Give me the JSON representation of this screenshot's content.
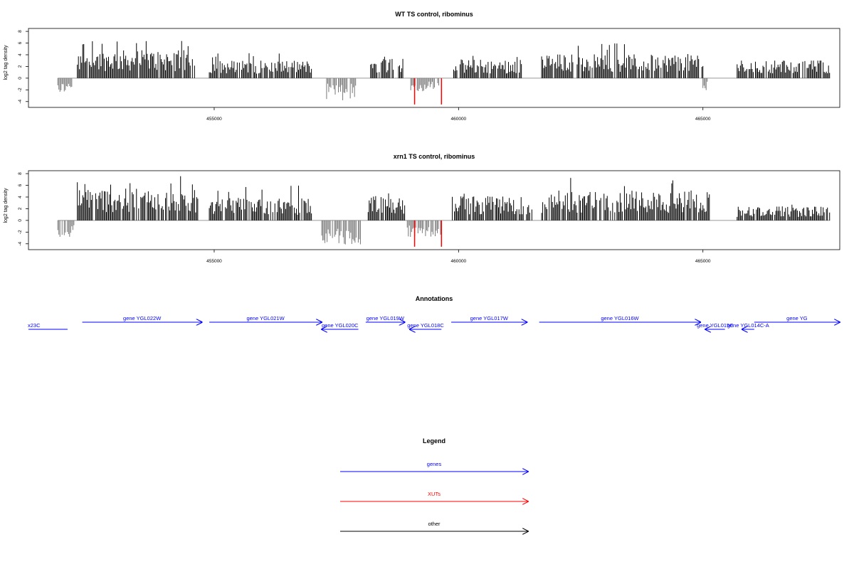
{
  "colors": {
    "positive_bar": "#000000",
    "negative_bar": "#777777",
    "baseline": "#999999",
    "xut": "#ff0000",
    "gene": "#0000ff",
    "other": "#000000",
    "axes": "#000000"
  },
  "chart_data": [
    {
      "type": "bar",
      "title": "WT TS control, ribominus",
      "ylabel": "log2 tag density",
      "xlim": [
        451200,
        467800
      ],
      "ylim": [
        -5,
        8.5
      ],
      "yticks": [
        -4,
        -2,
        0,
        2,
        4,
        6,
        8
      ],
      "xticks": [
        455000,
        460000,
        465000
      ],
      "xtick_labels": [
        "455000",
        "460000",
        "465000"
      ],
      "density_regions": [
        {
          "start": 451800,
          "end": 452100,
          "strand": "-",
          "mean": 1.6,
          "max": 3.0
        },
        {
          "start": 452200,
          "end": 454600,
          "strand": "+",
          "mean": 3.0,
          "max": 6.8
        },
        {
          "start": 454900,
          "end": 457000,
          "strand": "+",
          "mean": 1.9,
          "max": 4.3
        },
        {
          "start": 457300,
          "end": 457900,
          "strand": "-",
          "mean": 1.8,
          "max": 3.8
        },
        {
          "start": 458200,
          "end": 458900,
          "strand": "+",
          "mean": 2.2,
          "max": 4.0
        },
        {
          "start": 459000,
          "end": 459600,
          "strand": "-",
          "mean": 1.4,
          "max": 2.5
        },
        {
          "start": 459900,
          "end": 461300,
          "strand": "+",
          "mean": 2.0,
          "max": 4.0
        },
        {
          "start": 461700,
          "end": 465000,
          "strand": "+",
          "mean": 2.6,
          "max": 6.0
        },
        {
          "start": 465000,
          "end": 465100,
          "strand": "-",
          "mean": 1.5,
          "max": 2.4
        },
        {
          "start": 465700,
          "end": 467600,
          "strand": "+",
          "mean": 2.0,
          "max": 3.0
        }
      ],
      "xut_bars": [
        {
          "x": 459100,
          "value": -4.5
        },
        {
          "x": 459650,
          "value": -4.5
        }
      ]
    },
    {
      "type": "bar",
      "title": "xrn1 TS control, ribominus",
      "ylabel": "log2 tag density",
      "xlim": [
        451200,
        467800
      ],
      "ylim": [
        -5,
        8.5
      ],
      "yticks": [
        -4,
        -2,
        0,
        2,
        4,
        6,
        8
      ],
      "xticks": [
        455000,
        460000,
        465000
      ],
      "xtick_labels": [
        "455000",
        "460000",
        "465000"
      ],
      "density_regions": [
        {
          "start": 451800,
          "end": 452150,
          "strand": "-",
          "mean": 2.0,
          "max": 2.8
        },
        {
          "start": 452200,
          "end": 454700,
          "strand": "+",
          "mean": 3.4,
          "max": 7.6
        },
        {
          "start": 454900,
          "end": 457000,
          "strand": "+",
          "mean": 2.4,
          "max": 6.0
        },
        {
          "start": 457200,
          "end": 458000,
          "strand": "-",
          "mean": 2.6,
          "max": 4.5
        },
        {
          "start": 458150,
          "end": 458900,
          "strand": "+",
          "mean": 2.6,
          "max": 4.8
        },
        {
          "start": 458950,
          "end": 459650,
          "strand": "-",
          "mean": 1.8,
          "max": 3.0
        },
        {
          "start": 459850,
          "end": 461500,
          "strand": "+",
          "mean": 2.6,
          "max": 4.8
        },
        {
          "start": 461700,
          "end": 465150,
          "strand": "+",
          "mean": 3.2,
          "max": 7.3
        },
        {
          "start": 465700,
          "end": 467600,
          "strand": "+",
          "mean": 1.5,
          "max": 2.7
        }
      ],
      "xut_bars": [
        {
          "x": 459100,
          "value": -4.5
        },
        {
          "x": 459650,
          "value": -4.5
        }
      ]
    }
  ],
  "annotations": {
    "title": "Annotations",
    "genes": [
      {
        "label": "x23C",
        "start": 451200,
        "end": 452000,
        "strand": "-",
        "row": 1
      },
      {
        "label": "gene YGL022W",
        "start": 452300,
        "end": 454750,
        "strand": "+",
        "row": 0
      },
      {
        "label": "gene YGL021W",
        "start": 454900,
        "end": 457200,
        "strand": "+",
        "row": 0
      },
      {
        "label": "gene YGL020C",
        "start": 457200,
        "end": 457950,
        "strand": "-",
        "row": 1
      },
      {
        "label": "gene YGL019W",
        "start": 458100,
        "end": 458900,
        "strand": "+",
        "row": 0
      },
      {
        "label": "gene YGL018C",
        "start": 459000,
        "end": 459650,
        "strand": "-",
        "row": 1
      },
      {
        "label": "gene YGL017W",
        "start": 459850,
        "end": 461400,
        "strand": "+",
        "row": 0
      },
      {
        "label": "gene YGL016W",
        "start": 461650,
        "end": 464950,
        "strand": "+",
        "row": 0
      },
      {
        "label": "gene YGL015C",
        "start": 465050,
        "end": 465450,
        "strand": "-",
        "row": 1
      },
      {
        "label": "gene YGL014C-A",
        "start": 465800,
        "end": 466050,
        "strand": "-",
        "row": 1
      },
      {
        "label": "gene YG",
        "start": 466050,
        "end": 467800,
        "strand": "+",
        "row": 0
      }
    ]
  },
  "legend": {
    "title": "Legend",
    "items": [
      {
        "label": "genes",
        "color": "#0000ff"
      },
      {
        "label": "XUTs",
        "color": "#ff0000"
      },
      {
        "label": "other",
        "color": "#000000"
      }
    ]
  }
}
